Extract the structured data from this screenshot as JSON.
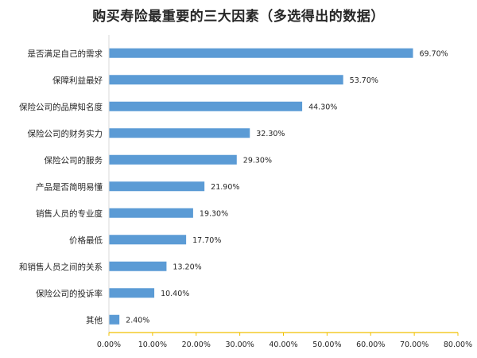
{
  "chart_data": {
    "type": "bar",
    "orientation": "horizontal",
    "title": "购买寿险最重要的三大因素（多选得出的数据）",
    "xlabel": "",
    "ylabel": "",
    "xlim": [
      0,
      80
    ],
    "categories": [
      "是否满足自己的需求",
      "保障利益最好",
      "保险公司的品牌知名度",
      "保险公司的财务实力",
      "保险公司的服务",
      "产品是否简明易懂",
      "销售人员的专业度",
      "价格最低",
      "和销售人员之间的关系",
      "保险公司的投诉率",
      "其他"
    ],
    "values": [
      69.7,
      53.7,
      44.3,
      32.3,
      29.3,
      21.9,
      19.3,
      17.7,
      13.2,
      10.4,
      2.4
    ],
    "value_labels": [
      "69.70%",
      "53.70%",
      "44.30%",
      "32.30%",
      "29.30%",
      "21.90%",
      "19.30%",
      "17.70%",
      "13.20%",
      "10.40%",
      "2.40%"
    ],
    "x_ticks": [
      0,
      10,
      20,
      30,
      40,
      50,
      60,
      70,
      80
    ],
    "x_tick_labels": [
      "0.00%",
      "10.00%",
      "20.00%",
      "30.00%",
      "40.00%",
      "50.00%",
      "60.00%",
      "70.00%",
      "80.00%"
    ],
    "grid": false,
    "legend": "none"
  },
  "colors": {
    "bar": "#5b9bd5",
    "axis": "#f0c000"
  }
}
